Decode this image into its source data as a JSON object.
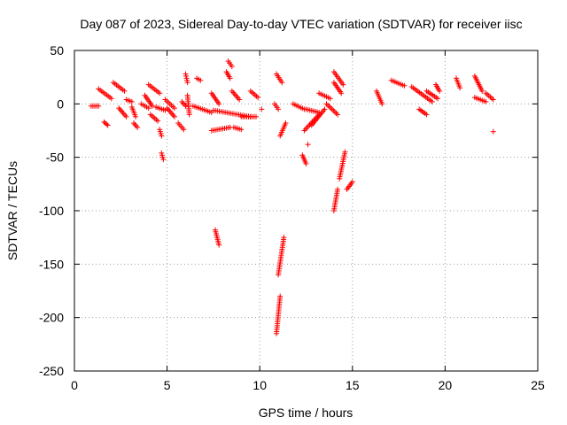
{
  "chart_data": {
    "type": "scatter",
    "title": "Day 087 of 2023, Sidereal Day-to-day VTEC variation (SDTVAR) for receiver iisc",
    "xlabel": "GPS time / hours",
    "ylabel": "SDTVAR / TECUs",
    "xlim": [
      0,
      25
    ],
    "ylim": [
      -250,
      50
    ],
    "xticks": [
      0,
      5,
      10,
      15,
      20,
      25
    ],
    "yticks": [
      -250,
      -200,
      -150,
      -100,
      -50,
      0,
      50
    ],
    "grid": true,
    "marker": "+",
    "color": "#ff0000",
    "series": [
      {
        "name": "SDTVAR",
        "tracks": [
          [
            [
              0.9,
              -2
            ],
            [
              1.3,
              -2
            ]
          ],
          [
            [
              1.3,
              14
            ],
            [
              2.0,
              5
            ]
          ],
          [
            [
              1.6,
              -17
            ],
            [
              1.8,
              -20
            ]
          ],
          [
            [
              2.1,
              20
            ],
            [
              2.7,
              12
            ]
          ],
          [
            [
              2.4,
              -4
            ],
            [
              2.8,
              -12
            ]
          ],
          [
            [
              2.8,
              4
            ],
            [
              3.1,
              2
            ]
          ],
          [
            [
              3.1,
              -3
            ],
            [
              3.3,
              -12
            ]
          ],
          [
            [
              3.2,
              -18
            ],
            [
              3.4,
              -22
            ]
          ],
          [
            [
              3.6,
              0
            ],
            [
              4.0,
              -4
            ]
          ],
          [
            [
              3.8,
              8
            ],
            [
              4.2,
              -2
            ]
          ],
          [
            [
              4.0,
              18
            ],
            [
              4.6,
              10
            ]
          ],
          [
            [
              4.1,
              -10
            ],
            [
              4.5,
              -16
            ]
          ],
          [
            [
              4.4,
              -3
            ],
            [
              4.9,
              -6
            ]
          ],
          [
            [
              4.6,
              -24
            ],
            [
              4.7,
              -30
            ]
          ],
          [
            [
              4.7,
              -46
            ],
            [
              4.8,
              -52
            ]
          ],
          [
            [
              4.9,
              4
            ],
            [
              5.4,
              -4
            ]
          ],
          [
            [
              5.0,
              -4
            ],
            [
              5.4,
              -12
            ]
          ],
          [
            [
              5.6,
              -18
            ],
            [
              5.9,
              -24
            ]
          ],
          [
            [
              5.8,
              2
            ],
            [
              6.0,
              -2
            ]
          ],
          [
            [
              6.0,
              28
            ],
            [
              6.1,
              20
            ]
          ],
          [
            [
              6.1,
              8
            ],
            [
              6.2,
              -10
            ]
          ],
          [
            [
              6.6,
              24
            ],
            [
              6.8,
              22
            ]
          ],
          [
            [
              6.4,
              -2
            ],
            [
              7.4,
              -8
            ]
          ],
          [
            [
              7.4,
              10
            ],
            [
              7.8,
              0
            ]
          ],
          [
            [
              7.4,
              -25
            ],
            [
              8.4,
              -22
            ]
          ],
          [
            [
              7.5,
              -6
            ],
            [
              9.5,
              -12
            ]
          ],
          [
            [
              7.6,
              -118
            ],
            [
              7.8,
              -132
            ]
          ],
          [
            [
              8.2,
              30
            ],
            [
              8.4,
              24
            ]
          ],
          [
            [
              8.3,
              40
            ],
            [
              8.5,
              35
            ]
          ],
          [
            [
              8.5,
              12
            ],
            [
              8.9,
              4
            ]
          ],
          [
            [
              8.6,
              -22
            ],
            [
              9.0,
              -24
            ]
          ],
          [
            [
              9.0,
              -12
            ],
            [
              9.8,
              -12
            ]
          ],
          [
            [
              9.5,
              12
            ],
            [
              9.9,
              6
            ]
          ],
          [
            [
              10.1,
              -5
            ]
          ],
          [
            [
              10.8,
              0
            ],
            [
              11.0,
              -5
            ]
          ],
          [
            [
              10.9,
              28
            ],
            [
              11.2,
              20
            ]
          ],
          [
            [
              11.0,
              -160
            ],
            [
              11.3,
              -125
            ]
          ],
          [
            [
              10.9,
              -215
            ],
            [
              11.1,
              -180
            ]
          ],
          [
            [
              11.1,
              -30
            ],
            [
              11.4,
              -18
            ]
          ],
          [
            [
              11.8,
              0
            ],
            [
              12.4,
              -5
            ]
          ],
          [
            [
              12.3,
              -48
            ],
            [
              12.5,
              -56
            ]
          ],
          [
            [
              12.6,
              -38
            ]
          ],
          [
            [
              12.5,
              -5
            ],
            [
              13.2,
              -8
            ]
          ],
          [
            [
              12.4,
              -25
            ],
            [
              13.2,
              -10
            ]
          ],
          [
            [
              12.8,
              -20
            ],
            [
              13.5,
              -5
            ]
          ],
          [
            [
              13.2,
              10
            ],
            [
              13.8,
              5
            ]
          ],
          [
            [
              13.6,
              0
            ],
            [
              14.2,
              -10
            ]
          ],
          [
            [
              14.0,
              30
            ],
            [
              14.5,
              18
            ]
          ],
          [
            [
              14.0,
              20
            ],
            [
              14.4,
              10
            ]
          ],
          [
            [
              14.0,
              -100
            ],
            [
              14.2,
              -80
            ]
          ],
          [
            [
              14.3,
              -70
            ],
            [
              14.6,
              -45
            ]
          ],
          [
            [
              14.7,
              -80
            ],
            [
              15.0,
              -73
            ]
          ],
          [
            [
              16.3,
              12
            ],
            [
              16.6,
              0
            ]
          ],
          [
            [
              17.1,
              22
            ],
            [
              17.8,
              17
            ]
          ],
          [
            [
              18.2,
              16
            ],
            [
              19.3,
              2
            ]
          ],
          [
            [
              18.6,
              -5
            ],
            [
              19.0,
              -10
            ]
          ],
          [
            [
              19.0,
              12
            ],
            [
              19.6,
              5
            ]
          ],
          [
            [
              19.5,
              18
            ],
            [
              19.7,
              12
            ]
          ],
          [
            [
              20.6,
              24
            ],
            [
              20.8,
              15
            ]
          ],
          [
            [
              21.6,
              26
            ],
            [
              22.0,
              12
            ]
          ],
          [
            [
              21.6,
              6
            ],
            [
              22.2,
              2
            ]
          ],
          [
            [
              22.2,
              10
            ],
            [
              22.6,
              4
            ]
          ],
          [
            [
              22.6,
              -26
            ]
          ]
        ]
      }
    ]
  }
}
